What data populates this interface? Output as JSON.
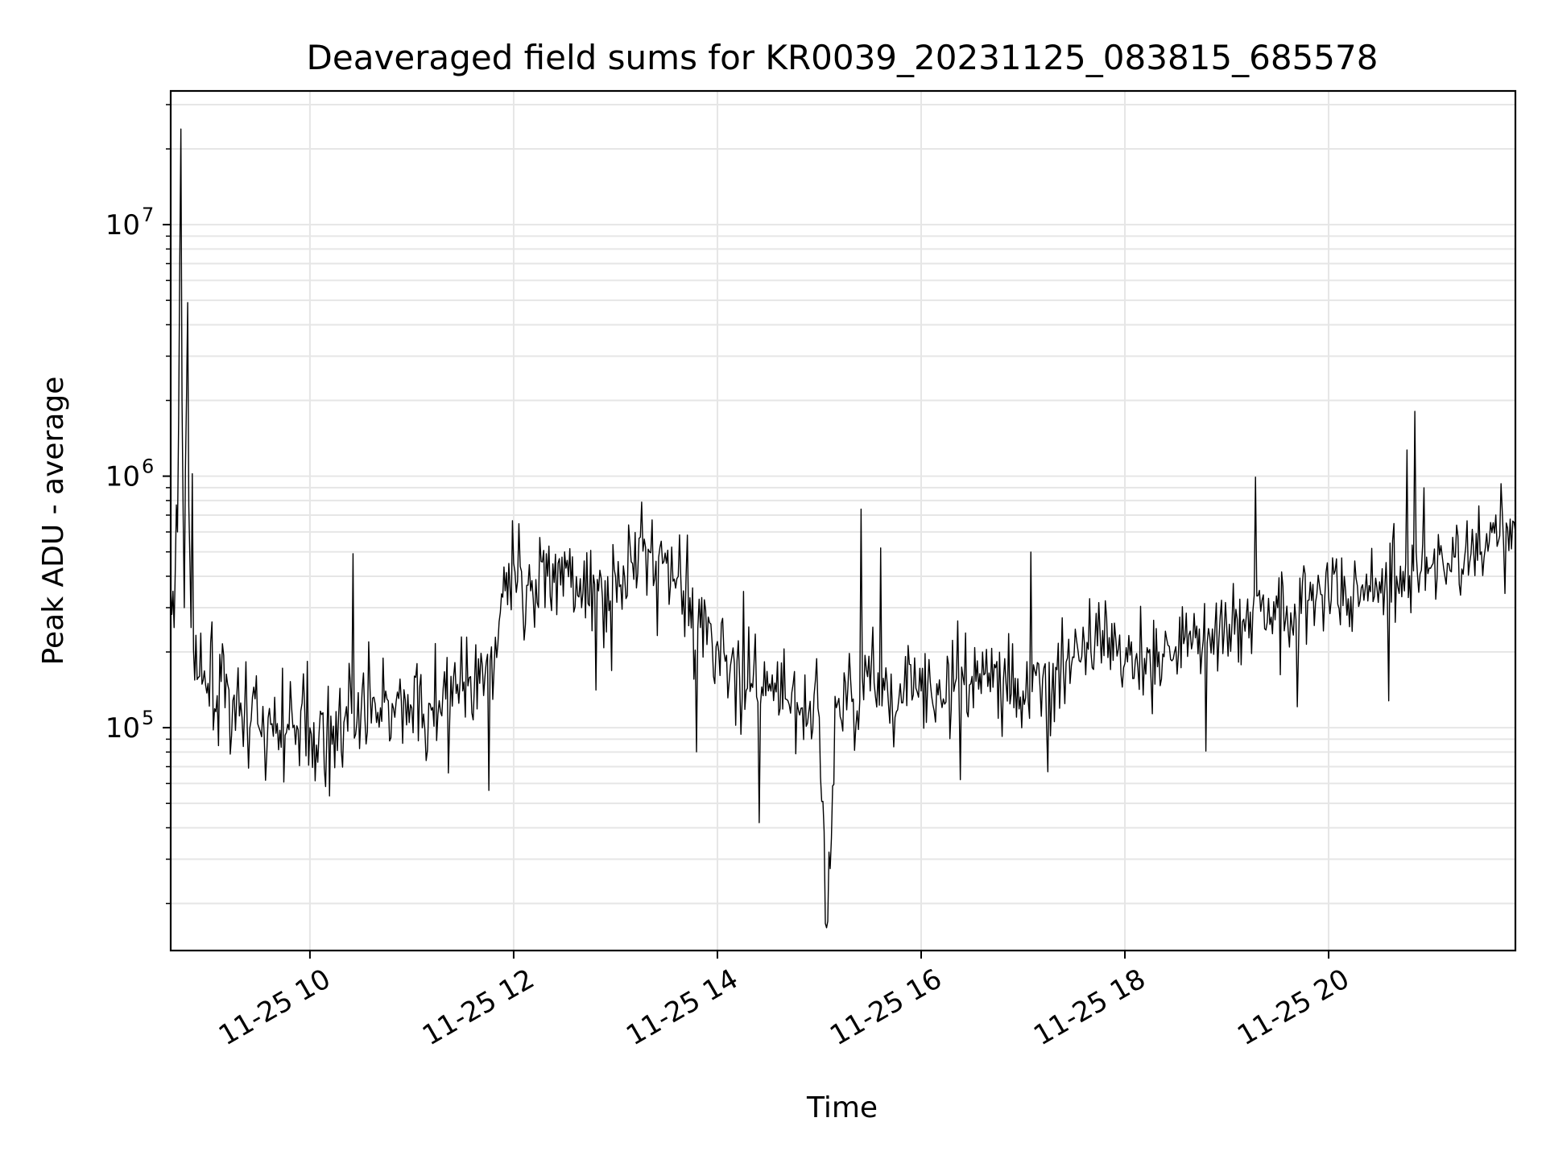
{
  "chart_data": {
    "type": "line",
    "title": "Deaveraged field sums for KR0039_20231125_083815_685578",
    "xlabel": "Time",
    "ylabel": "Peak ADU - average",
    "x_range": [
      "2023-11-25T08:38",
      "2023-11-25T21:50"
    ],
    "y_scale": "log",
    "ylim": [
      13000,
      34000000
    ],
    "grid": true,
    "line_color": "#000000",
    "x_ticks": [
      {
        "value": "2023-11-25T10:00",
        "label": "11-25 10"
      },
      {
        "value": "2023-11-25T12:00",
        "label": "11-25 12"
      },
      {
        "value": "2023-11-25T14:00",
        "label": "11-25 14"
      },
      {
        "value": "2023-11-25T16:00",
        "label": "11-25 16"
      },
      {
        "value": "2023-11-25T18:00",
        "label": "11-25 18"
      },
      {
        "value": "2023-11-25T20:00",
        "label": "11-25 20"
      }
    ],
    "y_ticks": [
      {
        "value": 100000,
        "base": "10",
        "exp": "5"
      },
      {
        "value": 1000000,
        "base": "10",
        "exp": "6"
      },
      {
        "value": 10000000,
        "base": "10",
        "exp": "7"
      }
    ],
    "series": [
      {
        "x": [
          "2023-11-25T08:38",
          "2023-11-25T08:40",
          "2023-11-25T08:42",
          "2023-11-25T08:44",
          "2023-11-25T08:46",
          "2023-11-25T08:48",
          "2023-11-25T08:50",
          "2023-11-25T08:55",
          "2023-11-25T09:00",
          "2023-11-25T09:10",
          "2023-11-25T09:20",
          "2023-11-25T09:30",
          "2023-11-25T09:40",
          "2023-11-25T09:50",
          "2023-11-25T10:00",
          "2023-11-25T10:10",
          "2023-11-25T10:20",
          "2023-11-25T10:30",
          "2023-11-25T10:40",
          "2023-11-25T10:50",
          "2023-11-25T11:00",
          "2023-11-25T11:10",
          "2023-11-25T11:20",
          "2023-11-25T11:30",
          "2023-11-25T11:40",
          "2023-11-25T11:50",
          "2023-11-25T11:55",
          "2023-11-25T12:00",
          "2023-11-25T12:10",
          "2023-11-25T12:20",
          "2023-11-25T12:30",
          "2023-11-25T12:40",
          "2023-11-25T12:50",
          "2023-11-25T13:00",
          "2023-11-25T13:10",
          "2023-11-25T13:20",
          "2023-11-25T13:30",
          "2023-11-25T13:40",
          "2023-11-25T13:50",
          "2023-11-25T14:00",
          "2023-11-25T14:10",
          "2023-11-25T14:20",
          "2023-11-25T14:30",
          "2023-11-25T14:40",
          "2023-11-25T14:50",
          "2023-11-25T15:00",
          "2023-11-25T15:05",
          "2023-11-25T15:10",
          "2023-11-25T15:20",
          "2023-11-25T15:30",
          "2023-11-25T15:40",
          "2023-11-25T15:50",
          "2023-11-25T16:00",
          "2023-11-25T16:10",
          "2023-11-25T16:20",
          "2023-11-25T16:30",
          "2023-11-25T16:40",
          "2023-11-25T16:50",
          "2023-11-25T17:00",
          "2023-11-25T17:10",
          "2023-11-25T17:20",
          "2023-11-25T17:30",
          "2023-11-25T17:40",
          "2023-11-25T17:50",
          "2023-11-25T18:00",
          "2023-11-25T18:10",
          "2023-11-25T18:20",
          "2023-11-25T18:30",
          "2023-11-25T18:40",
          "2023-11-25T18:50",
          "2023-11-25T19:00",
          "2023-11-25T19:10",
          "2023-11-25T19:20",
          "2023-11-25T19:30",
          "2023-11-25T19:40",
          "2023-11-25T19:50",
          "2023-11-25T20:00",
          "2023-11-25T20:10",
          "2023-11-25T20:20",
          "2023-11-25T20:30",
          "2023-11-25T20:40",
          "2023-11-25T20:50",
          "2023-11-25T21:00",
          "2023-11-25T21:10",
          "2023-11-25T21:20",
          "2023-11-25T21:30",
          "2023-11-25T21:40",
          "2023-11-25T21:50"
        ],
        "y": [
          350000,
          250000,
          600000,
          24000000,
          300000,
          4900000,
          250000,
          160000,
          150000,
          120000,
          110000,
          100000,
          95000,
          100000,
          100000,
          95000,
          105000,
          110000,
          115000,
          110000,
          120000,
          125000,
          130000,
          140000,
          150000,
          190000,
          350000,
          450000,
          350000,
          400000,
          500000,
          300000,
          350000,
          400000,
          450000,
          500000,
          450000,
          350000,
          250000,
          220000,
          180000,
          150000,
          140000,
          130000,
          120000,
          110000,
          17000,
          120000,
          130000,
          140000,
          150000,
          145000,
          140000,
          135000,
          150000,
          160000,
          165000,
          150000,
          140000,
          145000,
          170000,
          190000,
          200000,
          190000,
          180000,
          190000,
          200000,
          210000,
          220000,
          230000,
          250000,
          270000,
          290000,
          300000,
          310000,
          320000,
          330000,
          350000,
          370000,
          380000,
          400000,
          420000,
          430000,
          450000,
          470000,
          500000,
          550000,
          600000
        ]
      }
    ]
  }
}
